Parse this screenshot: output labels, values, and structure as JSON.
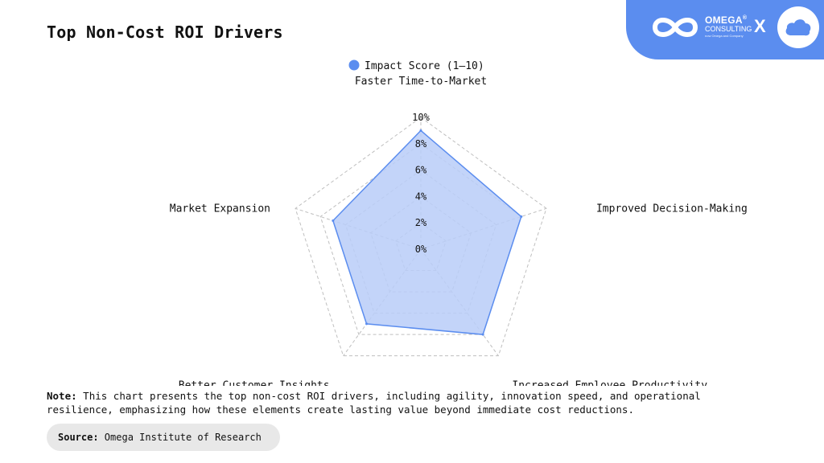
{
  "title": "Top Non-Cost ROI Drivers",
  "brand": {
    "name": "OMEGA",
    "reg_mark": "®",
    "subname": "CONSULTING",
    "tagline": "now Omega and Company",
    "separator": "X",
    "accent_color": "#5b8def",
    "partner_icon": "cloud-icon"
  },
  "chart_data": {
    "type": "radar",
    "title": "",
    "legend_position": "top",
    "series": [
      {
        "name": "Impact Score (1–10)",
        "color": "#5b8def",
        "fill": "#b8cdf8",
        "values": [
          9,
          8,
          8,
          7,
          7
        ]
      }
    ],
    "categories": [
      "Faster Time-to-Market",
      "Improved Decision-Making",
      "Increased Employee Productivity",
      "Better Customer Insights",
      "Market Expansion"
    ],
    "radial_ticks": [
      "0%",
      "2%",
      "4%",
      "6%",
      "8%",
      "10%"
    ],
    "rlim": [
      0,
      10
    ],
    "grid": true
  },
  "note": {
    "label": "Note:",
    "text": " This chart presents the top non-cost ROI drivers, including agility, innovation speed, and operational resilience, emphasizing how these elements create lasting value beyond immediate cost reductions."
  },
  "source": {
    "label": "Source:",
    "text": " Omega Institute of Research"
  }
}
